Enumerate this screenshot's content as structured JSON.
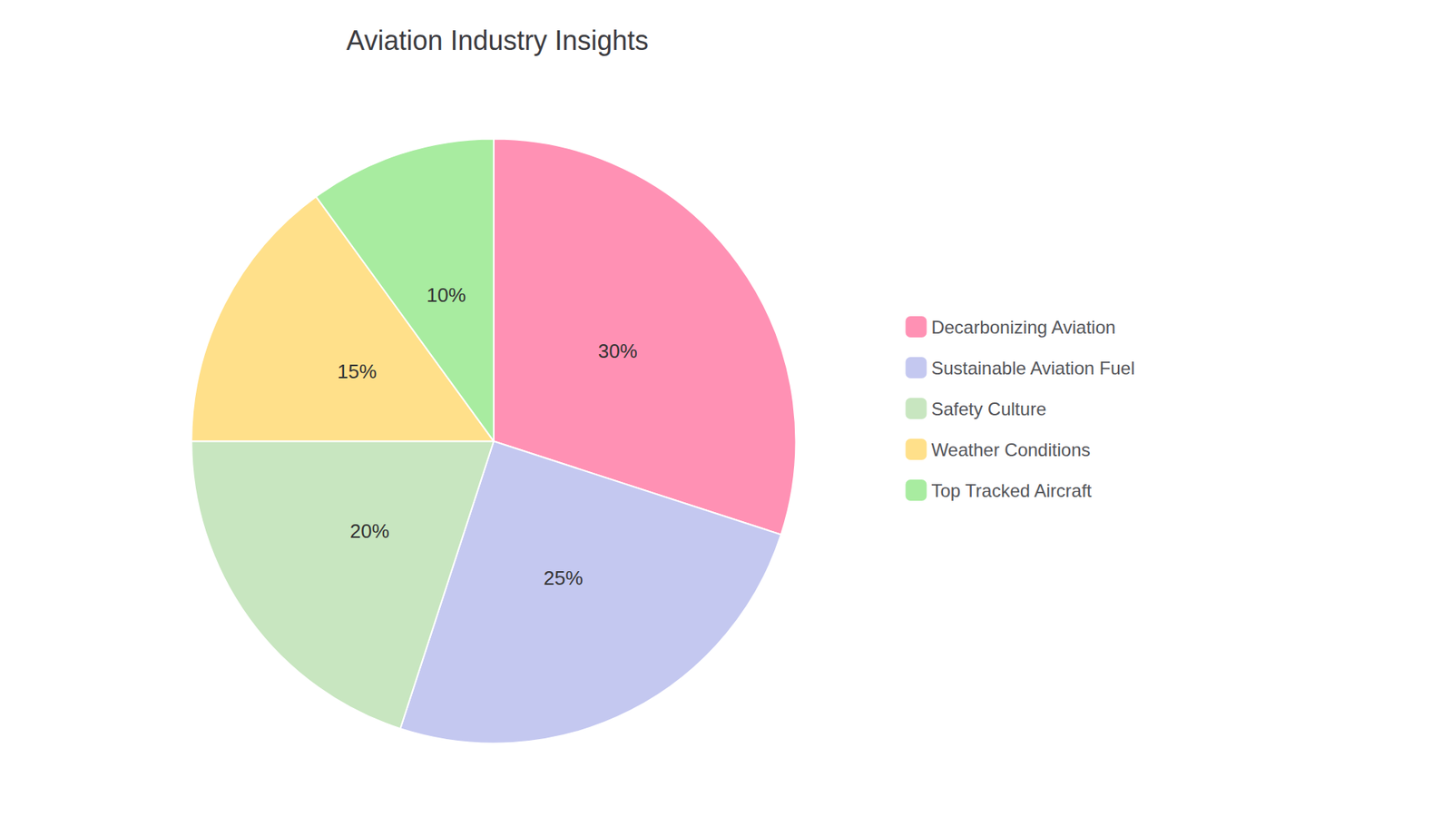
{
  "chart_data": {
    "type": "pie",
    "title": "Aviation Industry Insights",
    "categories": [
      "Decarbonizing Aviation",
      "Sustainable Aviation Fuel",
      "Safety Culture",
      "Weather Conditions",
      "Top Tracked Aircraft"
    ],
    "values": [
      30,
      25,
      20,
      15,
      10
    ],
    "value_labels": [
      "30%",
      "25%",
      "20%",
      "15%",
      "10%"
    ],
    "colors": [
      "#FF91B4",
      "#C4C8F0",
      "#C8E6C0",
      "#FFE08A",
      "#A8ECA0"
    ],
    "legend": "right",
    "data_labels": true
  }
}
